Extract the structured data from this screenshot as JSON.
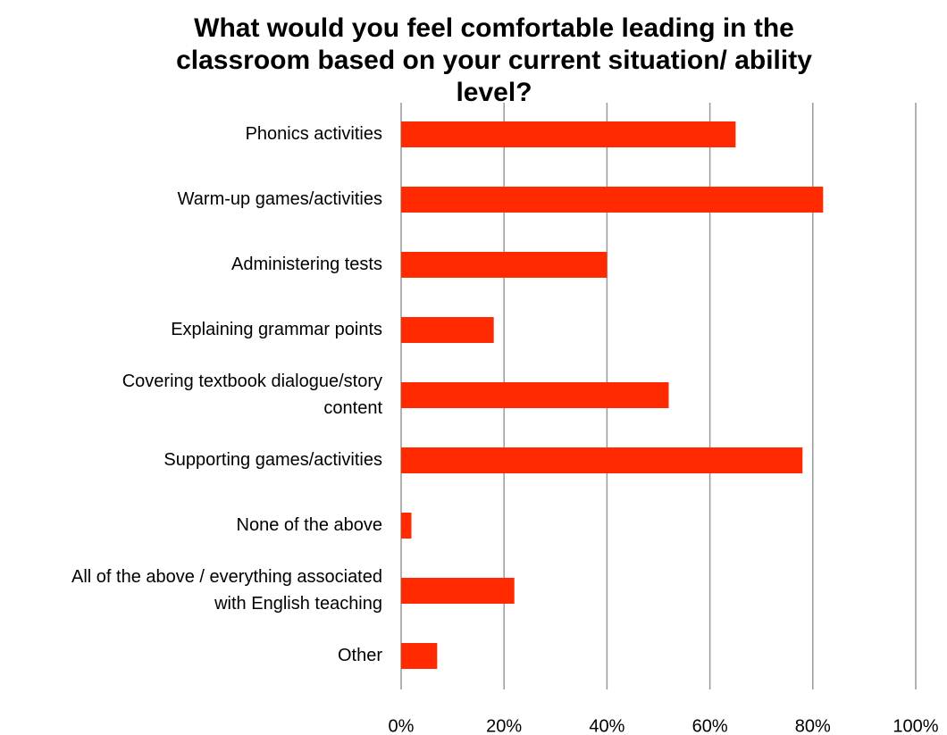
{
  "chart_data": {
    "type": "bar",
    "orientation": "horizontal",
    "title": "What would you feel comfortable leading in the classroom based on your current situation/ ability level?",
    "title_lines": [
      "What would you feel comfortable leading in the",
      "classroom based on your current situation/ ability",
      "level?"
    ],
    "categories": [
      "Phonics activities",
      "Warm-up games/activities",
      "Administering tests",
      "Explaining grammar points",
      "Covering textbook dialogue/story content",
      "Supporting games/activities",
      "None of the above",
      "All of the above / everything associated with English teaching",
      "Other"
    ],
    "category_lines": [
      [
        "Phonics activities"
      ],
      [
        "Warm-up games/activities"
      ],
      [
        "Administering tests"
      ],
      [
        "Explaining grammar points"
      ],
      [
        "Covering textbook dialogue/story",
        "content"
      ],
      [
        "Supporting games/activities"
      ],
      [
        "None of the above"
      ],
      [
        "All of the above / everything associated",
        "with English teaching"
      ],
      [
        "Other"
      ]
    ],
    "values": [
      65,
      82,
      40,
      18,
      52,
      78,
      2,
      22,
      7
    ],
    "xlim": [
      0,
      100
    ],
    "ticks": [
      0,
      20,
      40,
      60,
      80,
      100
    ],
    "tick_labels": [
      "0%",
      "20%",
      "40%",
      "60%",
      "80%",
      "100%"
    ],
    "xlabel": "",
    "ylabel": "",
    "grid": true,
    "legend": "none",
    "bar_color": "#ff2a00",
    "grid_color": "#999999"
  }
}
